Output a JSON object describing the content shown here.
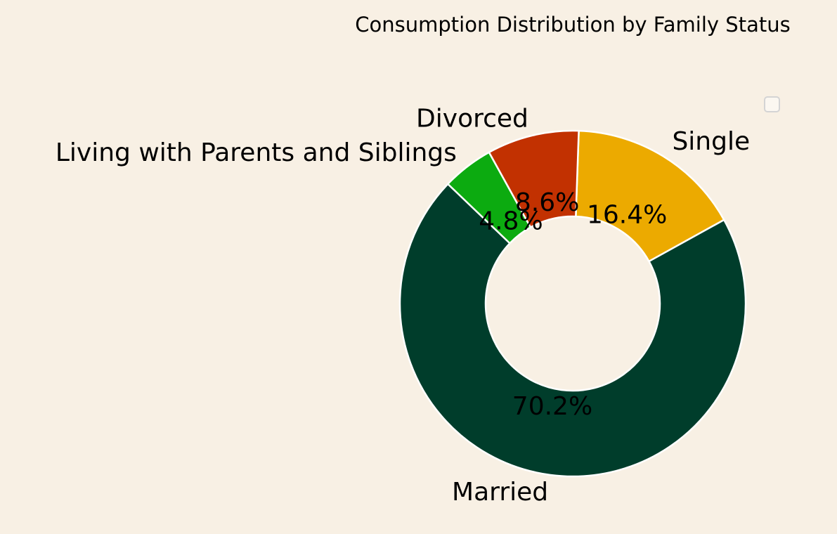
{
  "chart_data": {
    "type": "pie",
    "title": "Consumption Distribution by Family Status",
    "donut": true,
    "legend": {
      "placement": "top-right",
      "entries": []
    },
    "slices": [
      {
        "label": "Single",
        "value": 16.4,
        "pct_label": "16.4%",
        "color": "#ecaa00"
      },
      {
        "label": "Married",
        "value": 70.2,
        "pct_label": "70.2%",
        "color": "#003d2b"
      },
      {
        "label": "Living with Parents and Siblings",
        "value": 4.8,
        "pct_label": "4.8%",
        "color": "#0cab10"
      },
      {
        "label": "Divorced",
        "value": 8.6,
        "pct_label": "8.6%",
        "color": "#c23101"
      }
    ]
  },
  "colors": {
    "background": "#f8f0e4",
    "edge": "#ffffff"
  }
}
